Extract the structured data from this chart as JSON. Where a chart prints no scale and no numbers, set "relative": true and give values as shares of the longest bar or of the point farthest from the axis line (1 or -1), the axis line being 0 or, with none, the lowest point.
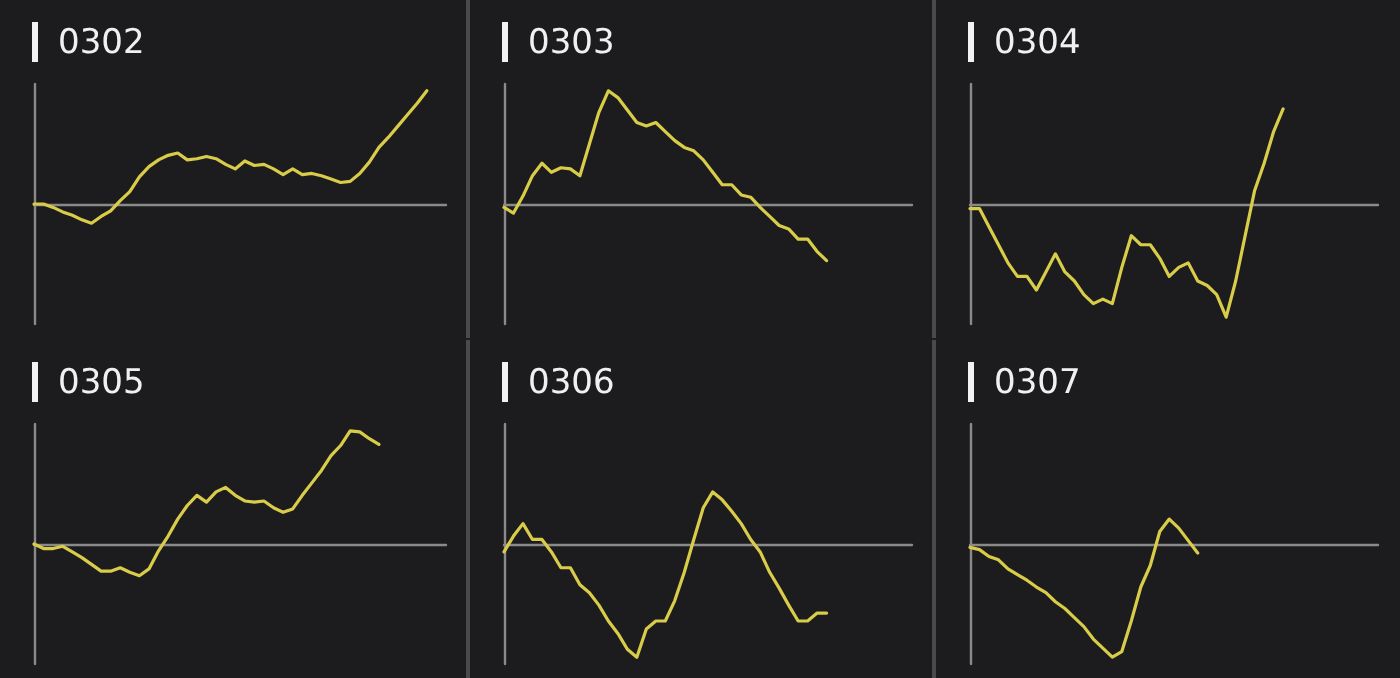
{
  "chart_data": [
    {
      "type": "line",
      "title": "0302",
      "relative": true,
      "tick_labels": false,
      "categories": [
        null,
        null,
        null,
        null,
        null,
        null,
        null,
        null,
        null,
        null,
        null,
        null,
        null,
        null,
        null,
        null,
        null,
        null,
        null,
        null,
        null,
        null,
        null,
        null,
        null,
        null,
        null,
        null,
        null,
        null,
        null,
        null,
        null,
        null,
        null,
        null,
        null,
        null,
        null,
        null,
        null,
        null,
        null,
        null
      ],
      "series": [
        {
          "color": "#d8cc48",
          "values": [
            0,
            0,
            -0.03,
            -0.07,
            -0.1,
            -0.14,
            -0.17,
            -0.11,
            -0.06,
            0.03,
            0.11,
            0.24,
            0.33,
            0.39,
            0.43,
            0.45,
            0.39,
            0.4,
            0.42,
            0.4,
            0.35,
            0.31,
            0.38,
            0.34,
            0.35,
            0.31,
            0.26,
            0.31,
            0.26,
            0.27,
            0.25,
            0.22,
            0.19,
            0.2,
            0.27,
            0.37,
            0.5,
            0.59,
            0.69,
            0.79,
            0.89,
            1,
            null,
            null
          ]
        }
      ]
    },
    {
      "type": "line",
      "title": "0303",
      "relative": true,
      "tick_labels": false,
      "categories": [
        null,
        null,
        null,
        null,
        null,
        null,
        null,
        null,
        null,
        null,
        null,
        null,
        null,
        null,
        null,
        null,
        null,
        null,
        null,
        null,
        null,
        null,
        null,
        null,
        null,
        null,
        null,
        null,
        null,
        null,
        null,
        null,
        null,
        null,
        null,
        null,
        null,
        null,
        null,
        null,
        null,
        null,
        null,
        null
      ],
      "series": [
        {
          "color": "#d8cc48",
          "values": [
            -0.03,
            -0.08,
            0.07,
            0.25,
            0.36,
            0.28,
            0.32,
            0.31,
            0.25,
            0.53,
            0.81,
            1,
            0.94,
            0.83,
            0.72,
            0.69,
            0.72,
            0.64,
            0.56,
            0.5,
            0.47,
            0.39,
            0.28,
            0.17,
            0.17,
            0.08,
            0.06,
            -0.03,
            -0.11,
            -0.19,
            -0.22,
            -0.31,
            -0.31,
            -0.42,
            -0.5,
            null,
            null,
            null,
            null,
            null,
            null,
            null,
            null,
            null
          ]
        }
      ]
    },
    {
      "type": "line",
      "title": "0304",
      "relative": true,
      "tick_labels": false,
      "categories": [
        null,
        null,
        null,
        null,
        null,
        null,
        null,
        null,
        null,
        null,
        null,
        null,
        null,
        null,
        null,
        null,
        null,
        null,
        null,
        null,
        null,
        null,
        null,
        null,
        null,
        null,
        null,
        null,
        null,
        null,
        null,
        null,
        null,
        null,
        null,
        null,
        null,
        null,
        null,
        null,
        null,
        null,
        null,
        null
      ],
      "series": [
        {
          "color": "#d8cc48",
          "values": [
            -0.04,
            -0.04,
            -0.2,
            -0.36,
            -0.52,
            -0.64,
            -0.64,
            -0.76,
            -0.6,
            -0.44,
            -0.6,
            -0.68,
            -0.8,
            -0.88,
            -0.84,
            -0.88,
            -0.56,
            -0.28,
            -0.36,
            -0.36,
            -0.48,
            -0.64,
            -0.56,
            -0.52,
            -0.68,
            -0.72,
            -0.8,
            -1,
            -0.68,
            -0.28,
            0.12,
            0.36,
            0.64,
            0.84,
            null,
            null,
            null,
            null,
            null,
            null,
            null,
            null,
            null,
            null
          ]
        }
      ]
    },
    {
      "type": "line",
      "title": "0305",
      "relative": true,
      "tick_labels": false,
      "categories": [
        null,
        null,
        null,
        null,
        null,
        null,
        null,
        null,
        null,
        null,
        null,
        null,
        null,
        null,
        null,
        null,
        null,
        null,
        null,
        null,
        null,
        null,
        null,
        null,
        null,
        null,
        null,
        null,
        null,
        null,
        null,
        null,
        null,
        null,
        null,
        null,
        null,
        null,
        null,
        null,
        null,
        null,
        null,
        null
      ],
      "series": [
        {
          "color": "#d8cc48",
          "values": [
            0,
            -0.04,
            -0.04,
            -0.02,
            -0.07,
            -0.12,
            -0.18,
            -0.24,
            -0.24,
            -0.21,
            -0.25,
            -0.28,
            -0.22,
            -0.06,
            0.07,
            0.22,
            0.34,
            0.43,
            0.37,
            0.46,
            0.5,
            0.43,
            0.38,
            0.37,
            0.38,
            0.32,
            0.28,
            0.31,
            0.43,
            0.54,
            0.65,
            0.78,
            0.87,
            1,
            0.99,
            0.93,
            0.88,
            null,
            null,
            null,
            null,
            null,
            null,
            null
          ]
        }
      ]
    },
    {
      "type": "line",
      "title": "0306",
      "relative": true,
      "tick_labels": false,
      "categories": [
        null,
        null,
        null,
        null,
        null,
        null,
        null,
        null,
        null,
        null,
        null,
        null,
        null,
        null,
        null,
        null,
        null,
        null,
        null,
        null,
        null,
        null,
        null,
        null,
        null,
        null,
        null,
        null,
        null,
        null,
        null,
        null,
        null,
        null,
        null,
        null,
        null,
        null,
        null,
        null,
        null,
        null,
        null,
        null
      ],
      "series": [
        {
          "color": "#d8cc48",
          "values": [
            -0.07,
            0.07,
            0.18,
            0.04,
            0.04,
            -0.07,
            -0.21,
            -0.21,
            -0.36,
            -0.43,
            -0.54,
            -0.68,
            -0.79,
            -0.93,
            -1,
            -0.75,
            -0.68,
            -0.68,
            -0.5,
            -0.25,
            0.04,
            0.32,
            0.46,
            0.39,
            0.29,
            0.18,
            0.04,
            -0.07,
            -0.25,
            -0.39,
            -0.54,
            -0.68,
            -0.68,
            -0.61,
            -0.61,
            null,
            null,
            null,
            null,
            null,
            null,
            null,
            null,
            null
          ]
        }
      ]
    },
    {
      "type": "line",
      "title": "0307",
      "relative": true,
      "tick_labels": false,
      "categories": [
        null,
        null,
        null,
        null,
        null,
        null,
        null,
        null,
        null,
        null,
        null,
        null,
        null,
        null,
        null,
        null,
        null,
        null,
        null,
        null,
        null,
        null,
        null,
        null,
        null,
        null,
        null,
        null,
        null,
        null,
        null,
        null,
        null,
        null,
        null,
        null,
        null,
        null,
        null,
        null,
        null,
        null,
        null,
        null
      ],
      "series": [
        {
          "color": "#d8cc48",
          "values": [
            -0.03,
            -0.05,
            -0.11,
            -0.14,
            -0.22,
            -0.27,
            -0.32,
            -0.38,
            -0.43,
            -0.51,
            -0.57,
            -0.65,
            -0.73,
            -0.84,
            -0.92,
            -1,
            -0.95,
            -0.68,
            -0.38,
            -0.19,
            0.11,
            0.22,
            0.14,
            0.03,
            -0.08,
            null,
            null,
            null,
            null,
            null,
            null,
            null,
            null,
            null,
            null,
            null,
            null,
            null,
            null,
            null,
            null,
            null,
            null,
            null
          ]
        }
      ]
    }
  ]
}
